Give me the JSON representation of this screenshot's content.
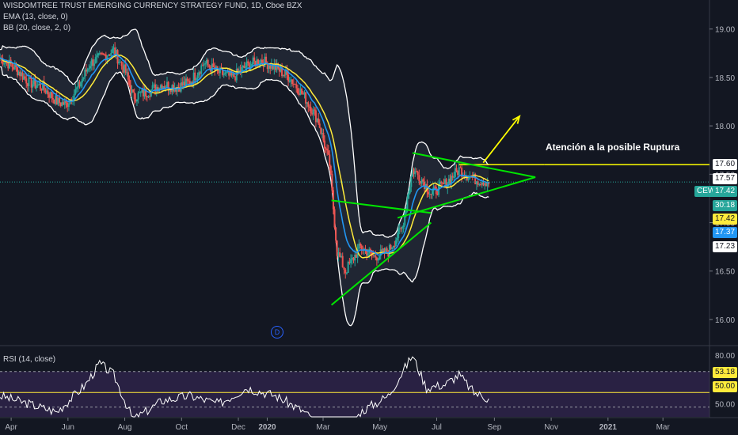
{
  "header": {
    "title": "WISDOMTREE TRUST EMERGING CURRENCY STRATEGY FUND, 1D, Cboe BZX",
    "ema_label": "EMA (13, close, 0)",
    "bb_label": "BB (20, close, 2, 0)",
    "rsi_label": "RSI (14, close)"
  },
  "annotation": {
    "text": "Atención a la posible Ruptura",
    "event_marker": "D"
  },
  "price_tags": {
    "symbol": "CEW",
    "last": "17.42",
    "countdown": "30:18",
    "ema": "17.42",
    "bb_lower": "17.37",
    "bb_upper": "17.57",
    "level": "17.60",
    "bb_basis": "17.23",
    "rsi": "53.18",
    "rsi_mid": "50.00"
  },
  "colors": {
    "background": "#131722",
    "up": "#26a69a",
    "down": "#ef5350",
    "ema": "#2196f3",
    "basis": "#ffeb3b",
    "bands": "#ffffff",
    "trendline": "#00e600",
    "horizontal_line": "#ffff00",
    "rsi_line": "#ffffff",
    "rsi_band": "#3d2a5e"
  },
  "chart_data": {
    "type": "candlestick",
    "title": "WISDOMTREE TRUST EMERGING CURRENCY STRATEGY FUND, 1D, Cboe BZX",
    "x_ticks": [
      "Apr",
      "Jun",
      "Aug",
      "Oct",
      "Dec",
      "2020",
      "Mar",
      "May",
      "Jul",
      "Sep",
      "Nov",
      "2021",
      "Mar"
    ],
    "y_ticks": [
      16.0,
      16.5,
      17.0,
      17.5,
      18.0,
      18.5,
      19.0
    ],
    "y_range": [
      15.73,
      19.3
    ],
    "rsi_ticks": [
      50.0,
      80.0
    ],
    "rsi_bands": [
      30,
      70
    ],
    "series_names": [
      "EMA (13, close, 0)",
      "BB (20, close, 2, 0)",
      "RSI (14, close)"
    ],
    "price_path": [
      [
        "2019-03-20",
        18.7
      ],
      [
        "2019-04-05",
        18.6
      ],
      [
        "2019-04-20",
        18.45
      ],
      [
        "2019-05-05",
        18.4
      ],
      [
        "2019-05-20",
        18.25
      ],
      [
        "2019-05-30",
        18.22
      ],
      [
        "2019-06-12",
        18.4
      ],
      [
        "2019-06-25",
        18.65
      ],
      [
        "2019-07-05",
        18.7
      ],
      [
        "2019-07-20",
        18.78
      ],
      [
        "2019-08-02",
        18.55
      ],
      [
        "2019-08-10",
        18.3
      ],
      [
        "2019-08-25",
        18.35
      ],
      [
        "2019-09-10",
        18.43
      ],
      [
        "2019-09-25",
        18.4
      ],
      [
        "2019-10-10",
        18.45
      ],
      [
        "2019-10-25",
        18.65
      ],
      [
        "2019-11-10",
        18.55
      ],
      [
        "2019-11-25",
        18.5
      ],
      [
        "2019-12-10",
        18.62
      ],
      [
        "2019-12-25",
        18.68
      ],
      [
        "2020-01-10",
        18.6
      ],
      [
        "2020-01-25",
        18.5
      ],
      [
        "2020-02-10",
        18.3
      ],
      [
        "2020-02-25",
        18.05
      ],
      [
        "2020-03-08",
        17.6
      ],
      [
        "2020-03-16",
        16.7
      ],
      [
        "2020-03-25",
        16.5
      ],
      [
        "2020-04-10",
        16.75
      ],
      [
        "2020-04-25",
        16.65
      ],
      [
        "2020-05-10",
        16.7
      ],
      [
        "2020-05-25",
        16.95
      ],
      [
        "2020-06-05",
        17.55
      ],
      [
        "2020-06-15",
        17.45
      ],
      [
        "2020-06-25",
        17.3
      ],
      [
        "2020-07-10",
        17.4
      ],
      [
        "2020-07-25",
        17.55
      ],
      [
        "2020-08-10",
        17.45
      ],
      [
        "2020-08-26",
        17.42
      ]
    ],
    "rsi_path": [
      [
        "2019-03-20",
        55
      ],
      [
        "2019-04-20",
        50
      ],
      [
        "2019-05-20",
        45
      ],
      [
        "2019-06-20",
        62
      ],
      [
        "2019-07-05",
        75
      ],
      [
        "2019-07-20",
        68
      ],
      [
        "2019-08-10",
        40
      ],
      [
        "2019-09-10",
        52
      ],
      [
        "2019-10-10",
        55
      ],
      [
        "2019-11-10",
        50
      ],
      [
        "2019-12-10",
        60
      ],
      [
        "2020-01-10",
        55
      ],
      [
        "2020-02-10",
        45
      ],
      [
        "2020-03-08",
        30
      ],
      [
        "2020-03-20",
        22
      ],
      [
        "2020-04-10",
        45
      ],
      [
        "2020-05-10",
        55
      ],
      [
        "2020-06-05",
        80
      ],
      [
        "2020-06-20",
        60
      ],
      [
        "2020-07-10",
        62
      ],
      [
        "2020-07-25",
        68
      ],
      [
        "2020-08-10",
        57
      ],
      [
        "2020-08-26",
        53.18
      ]
    ],
    "horizontal_line": {
      "value": 17.6,
      "from": "2020-07-25",
      "to": "2020-10-25"
    },
    "trendlines": [
      {
        "from": [
          "2020-03-10",
          16.15
        ],
        "to": [
          "2020-06-25",
          17.0
        ]
      },
      {
        "from": [
          "2020-03-10",
          17.23
        ],
        "to": [
          "2020-06-25",
          17.1
        ]
      },
      {
        "from": [
          "2020-06-05",
          17.72
        ],
        "to": [
          "2020-10-15",
          17.47
        ]
      },
      {
        "from": [
          "2020-05-20",
          17.05
        ],
        "to": [
          "2020-10-15",
          17.47
        ]
      }
    ],
    "arrow": {
      "from": [
        "2020-08-20",
        17.62
      ],
      "to": [
        "2020-09-28",
        18.1
      ]
    }
  }
}
